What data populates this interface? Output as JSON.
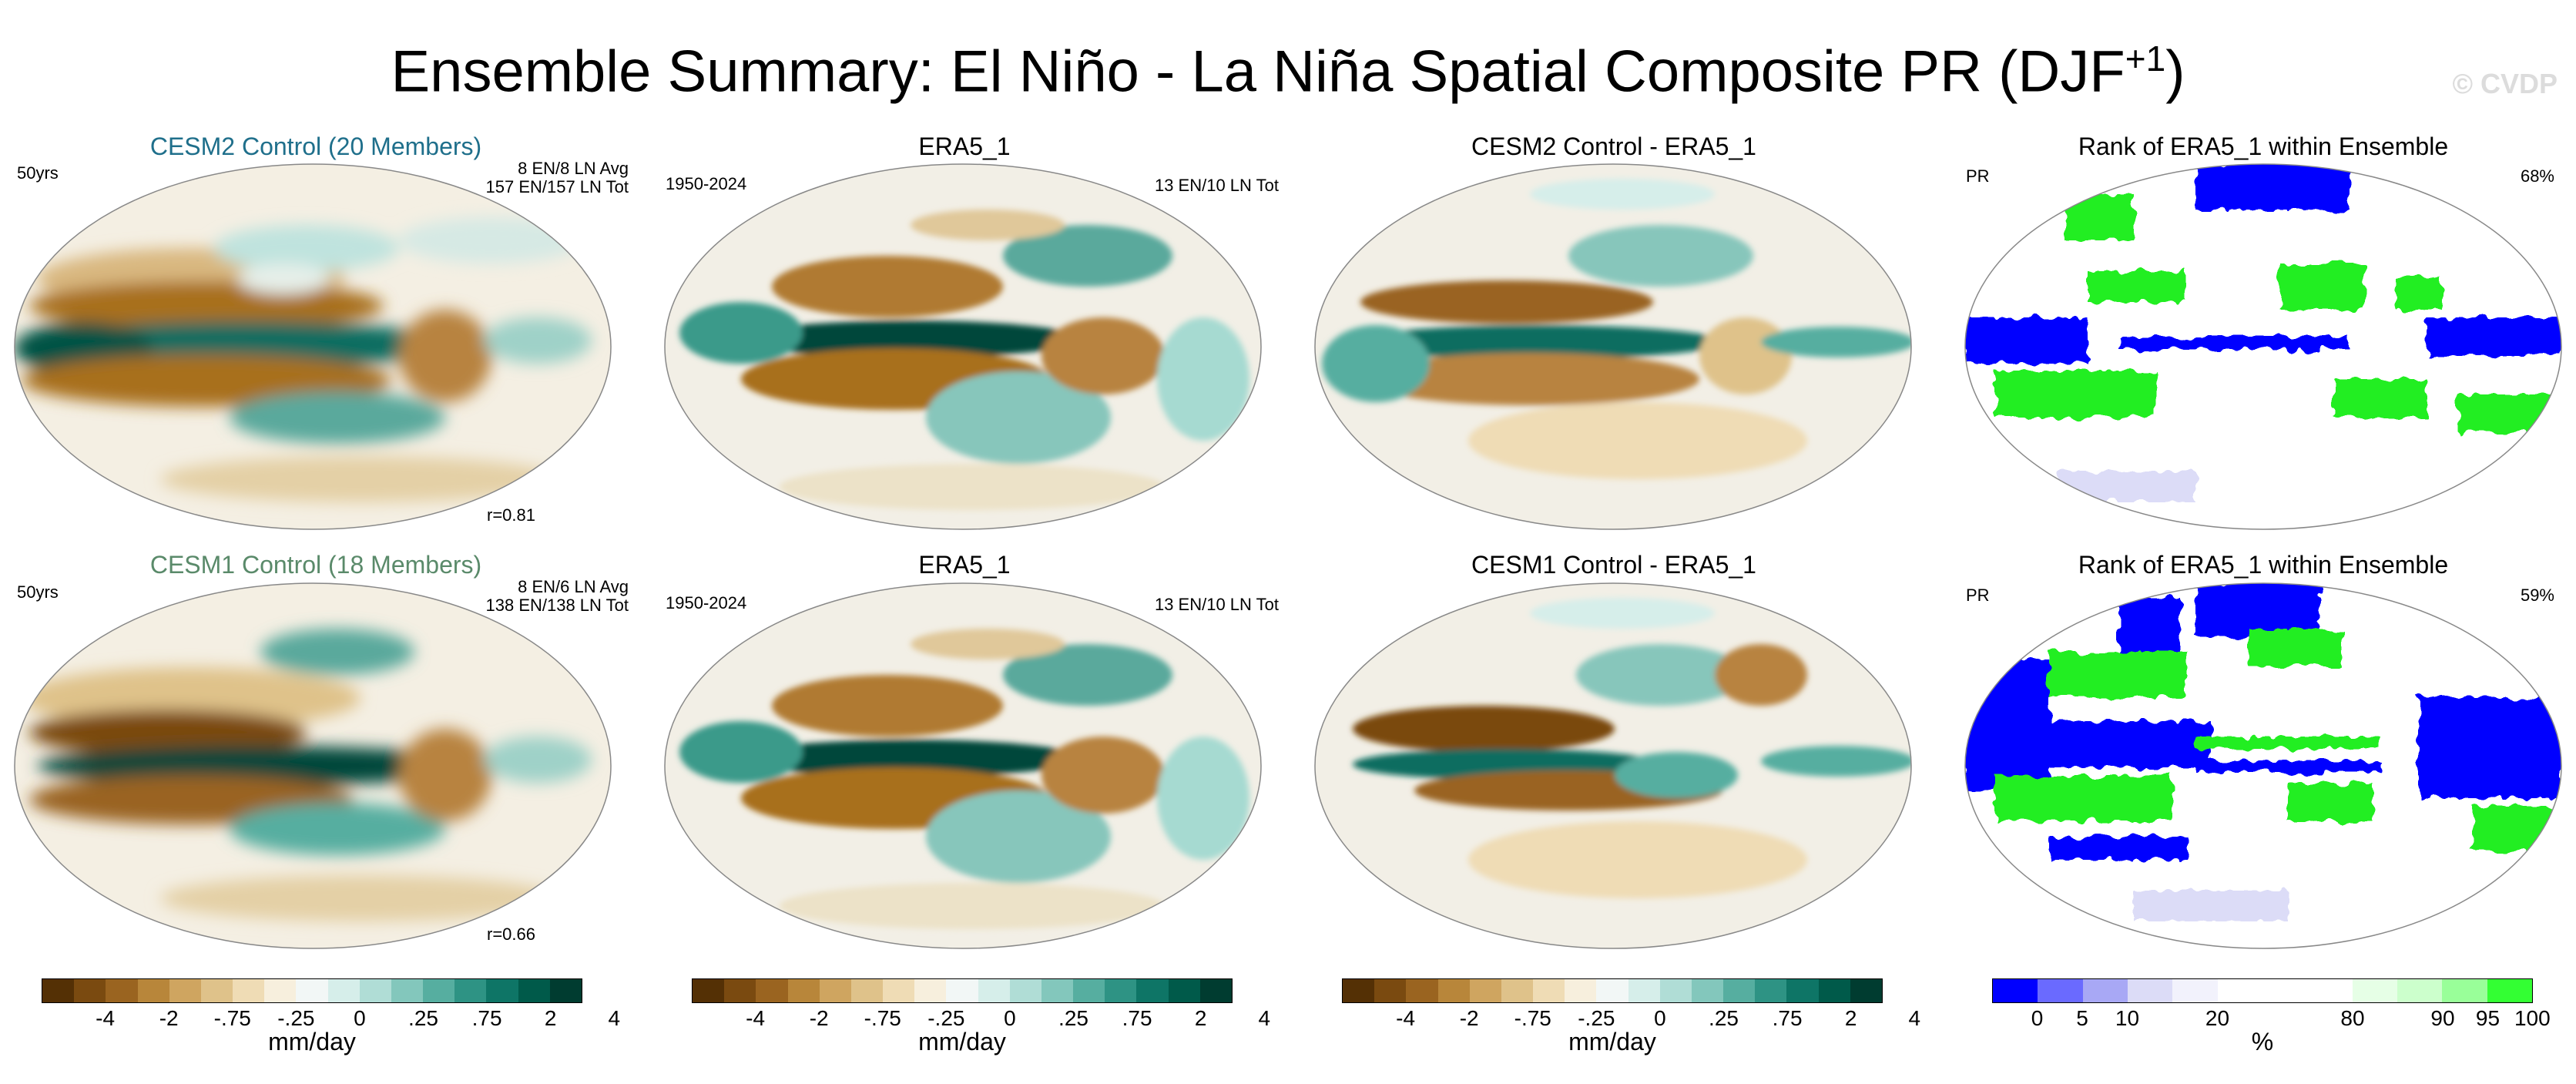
{
  "title": "Ensemble Summary: El Niño - La Niña Spatial Composite PR (DJF",
  "title_sup": "+1",
  "title_close": ")",
  "watermark": "© CVDP",
  "rows": [
    {
      "model": {
        "title": "CESM2 Control (20 Members)",
        "title_color": "#1f6f8b",
        "left_note": "50yrs",
        "right_note_1": "8 EN/8 LN Avg",
        "right_note_2": "157 EN/157 LN Tot",
        "corr": "r=0.81"
      },
      "obs": {
        "title": "ERA5_1",
        "left_note": "1950-2024",
        "right_note": "13 EN/10 LN Tot"
      },
      "diff": {
        "title": "CESM2 Control - ERA5_1"
      },
      "rank": {
        "title": "Rank of ERA5_1 within Ensemble",
        "left_note": "PR",
        "right_note": "68%"
      }
    },
    {
      "model": {
        "title": "CESM1 Control (18 Members)",
        "title_color": "#5a8a6a",
        "left_note": "50yrs",
        "right_note_1": "8 EN/6 LN Avg",
        "right_note_2": "138 EN/138 LN Tot",
        "corr": "r=0.66"
      },
      "obs": {
        "title": "ERA5_1",
        "left_note": "1950-2024",
        "right_note": "13 EN/10 LN Tot"
      },
      "diff": {
        "title": "CESM1 Control - ERA5_1"
      },
      "rank": {
        "title": "Rank of ERA5_1 within Ensemble",
        "left_note": "PR",
        "right_note": "59%"
      }
    }
  ],
  "colorbars": {
    "pr": {
      "colors": [
        "#543005",
        "#7a4a10",
        "#9a6420",
        "#b8863a",
        "#cfa560",
        "#dfc28a",
        "#efdcb5",
        "#f7efdd",
        "#f2f7f6",
        "#d6eeea",
        "#b0ddd6",
        "#83c7bc",
        "#56aea0",
        "#2e9384",
        "#0e7566",
        "#005a4a",
        "#003c30"
      ],
      "ticks": [
        "-4",
        "-2",
        "-.75",
        "-.25",
        "0",
        ".25",
        ".75",
        "2",
        "4"
      ],
      "unit": "mm/day"
    },
    "rank": {
      "colors": [
        "#0000ff",
        "#6a6aff",
        "#a8a8f5",
        "#dcdcf7",
        "#f2f2fc",
        "#ffffff",
        "#ffffff",
        "#ffffff",
        "#e6ffe6",
        "#ccffcc",
        "#99ff99",
        "#33ff33"
      ],
      "ticks": [
        "0",
        "5",
        "10",
        "20",
        "80",
        "90",
        "95",
        "100"
      ],
      "unit": "%"
    }
  },
  "legend_colors": {
    "land_outline": "#7a7a7a",
    "rank_blue": "#0000ff",
    "rank_green": "#22ee22"
  }
}
